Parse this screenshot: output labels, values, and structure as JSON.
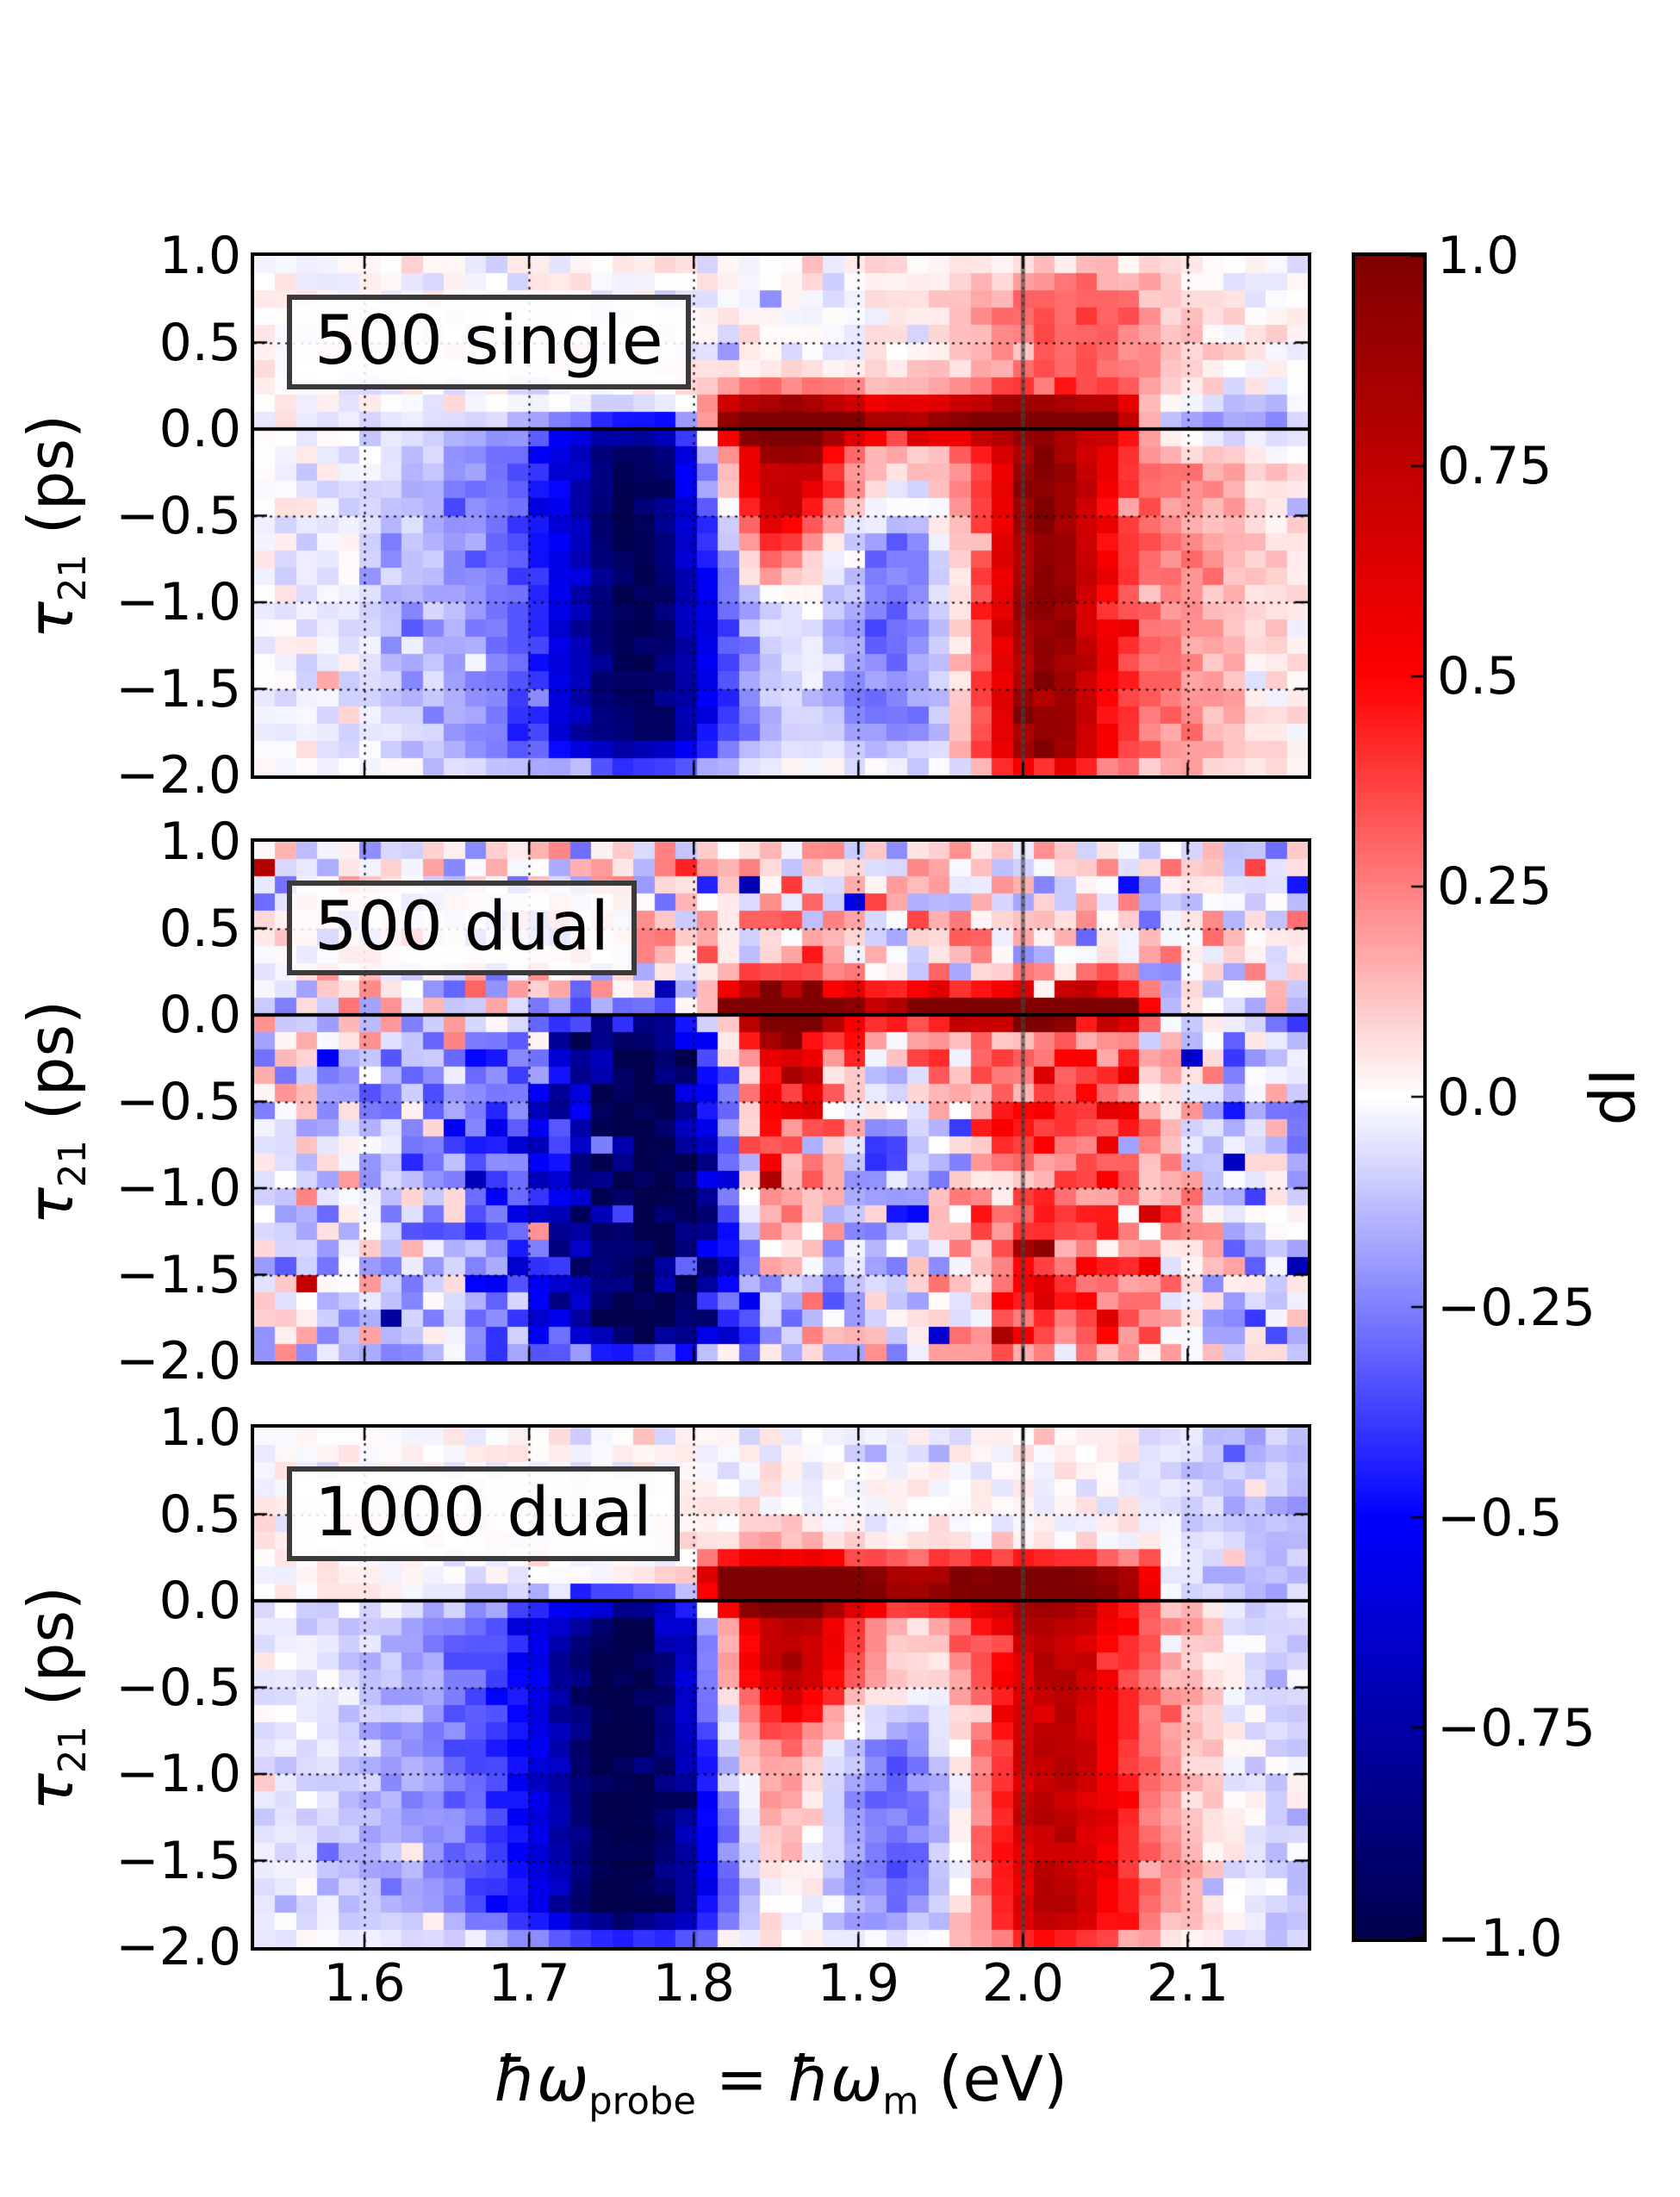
{
  "chart_data": {
    "type": "heatmap",
    "title": "",
    "xlabel_parts": {
      "homega1": "ħω",
      "sub1": "probe",
      "eq": " = ",
      "homega2": "ħω",
      "sub2": "m",
      "unit": " (eV)"
    },
    "ylabel_parts": {
      "tau": "τ",
      "sub": "21",
      "unit": " (ps)"
    },
    "axes": {
      "x": {
        "range": [
          1.533,
          2.173
        ],
        "tick_values": [
          1.6,
          1.7,
          1.8,
          1.9,
          2.0,
          2.1
        ],
        "tick_labels": [
          "1.6",
          "1.7",
          "1.8",
          "1.9",
          "2.0",
          "2.1"
        ],
        "grid": "dotted"
      },
      "y": {
        "range": [
          -2.0,
          1.0
        ],
        "tick_values": [
          1.0,
          0.5,
          0.0,
          -0.5,
          -1.0,
          -1.5,
          -2.0
        ],
        "tick_labels": [
          "1.0",
          "0.5",
          "0.0",
          "−0.5",
          "−1.0",
          "−1.5",
          "−2.0"
        ],
        "grid": "dotted"
      }
    },
    "grid": {
      "nx": 50,
      "ny": 30,
      "x0": 1.533,
      "dx": 0.0128,
      "y_top": 1.0,
      "dy": 0.1
    },
    "value_range": [
      -1,
      1
    ],
    "colormap": "seismic",
    "overlays": {
      "hline_y": 0.0,
      "vline_x": 2.0
    },
    "panels": [
      {
        "label": "500 single",
        "seed": 3,
        "noise": 0.06,
        "features": [
          {
            "a": -0.75,
            "cx": 1.768,
            "sx": 0.036,
            "y0": -2.05,
            "y1": 0.18,
            "yw": 0.25
          },
          {
            "a": -0.28,
            "cx": 1.72,
            "sx": 0.07,
            "y0": -2.05,
            "y1": 0.15,
            "yw": 0.3
          },
          {
            "a": 0.75,
            "x0": 1.803,
            "x1": 2.08,
            "xw": 0.02,
            "cy": 0.07,
            "sy": 0.1
          },
          {
            "a": 0.55,
            "cx": 1.85,
            "sx": 0.03,
            "cy": 0.0,
            "sy": 0.12
          },
          {
            "a": 0.5,
            "cx": 2.005,
            "sx": 0.035,
            "cy": 0.03,
            "sy": 0.1
          },
          {
            "a": 0.75,
            "cx": 1.852,
            "sx": 0.03,
            "cy": -0.28,
            "sy": 0.22
          },
          {
            "a": 0.35,
            "cx": 1.848,
            "sx": 0.018,
            "cy": -0.65,
            "sy": 0.25
          },
          {
            "a": 0.7,
            "cx": 2.012,
            "sx": 0.026,
            "y0": -2.05,
            "y1": -0.02,
            "yw": 0.15
          },
          {
            "a": 0.3,
            "cx": 2.05,
            "sx": 0.06,
            "y0": -2.05,
            "y1": 0.0,
            "yw": 0.2
          },
          {
            "a": 0.34,
            "cx": 2.03,
            "sx": 0.045,
            "y0": 0.05,
            "y1": 1.05,
            "yw": 0.3
          },
          {
            "a": -0.3,
            "cx": 1.925,
            "sx": 0.027,
            "y0": -2.05,
            "y1": -0.35,
            "yw": 0.35
          },
          {
            "a": -0.18,
            "x0": 2.08,
            "x1": 2.18,
            "xw": 0.03,
            "cy": 0.07,
            "sy": 0.1
          }
        ]
      },
      {
        "label": "500 dual",
        "seed": 11,
        "noise": 0.21,
        "features": [
          {
            "a": -0.8,
            "cx": 1.775,
            "sx": 0.04,
            "y0": -2.05,
            "y1": 0.12,
            "yw": 0.2
          },
          {
            "a": -0.28,
            "cx": 1.72,
            "sx": 0.08,
            "y0": -2.05,
            "y1": 0.1,
            "yw": 0.3
          },
          {
            "a": 0.85,
            "x0": 1.815,
            "x1": 2.085,
            "xw": 0.015,
            "cy": 0.05,
            "sy": 0.085
          },
          {
            "a": 0.5,
            "cx": 1.845,
            "sx": 0.028,
            "cy": 0.0,
            "sy": 0.12
          },
          {
            "a": 0.45,
            "cx": 2.0,
            "sx": 0.04,
            "cy": 0.03,
            "sy": 0.09
          },
          {
            "a": 0.65,
            "cx": 1.85,
            "sx": 0.026,
            "cy": -0.3,
            "sy": 0.3
          },
          {
            "a": 0.35,
            "cx": 1.857,
            "sx": 0.02,
            "cy": -1.0,
            "sy": 0.55
          },
          {
            "a": 0.4,
            "cx": 2.02,
            "sx": 0.05,
            "y0": -2.05,
            "y1": -0.02,
            "yw": 0.2
          },
          {
            "a": -0.28,
            "cx": 1.93,
            "sx": 0.028,
            "y0": -2.05,
            "y1": -0.3,
            "yw": 0.4
          },
          {
            "a": 0.12,
            "cx": 1.86,
            "sx": 0.08,
            "y0": 0.12,
            "y1": 1.05,
            "yw": 0.2
          },
          {
            "a": -0.12,
            "cx": 2.15,
            "sx": 0.04,
            "y0": -2.05,
            "y1": 0.2,
            "yw": 0.3
          }
        ]
      },
      {
        "label": "1000 dual",
        "seed": 21,
        "noise": 0.06,
        "features": [
          {
            "a": -0.8,
            "cx": 1.765,
            "sx": 0.042,
            "y0": -2.05,
            "y1": 0.15,
            "yw": 0.22
          },
          {
            "a": -0.3,
            "cx": 1.71,
            "sx": 0.08,
            "y0": -2.05,
            "y1": 0.1,
            "yw": 0.3
          },
          {
            "a": 0.9,
            "x0": 1.8,
            "x1": 2.09,
            "xw": 0.02,
            "cy": 0.1,
            "sy": 0.1
          },
          {
            "a": 0.5,
            "cx": 1.85,
            "sx": 0.032,
            "cy": 0.05,
            "sy": 0.12
          },
          {
            "a": 0.5,
            "cx": 2.005,
            "sx": 0.032,
            "cy": 0.05,
            "sy": 0.12
          },
          {
            "a": 0.8,
            "cx": 1.855,
            "sx": 0.034,
            "cy": -0.3,
            "sy": 0.3
          },
          {
            "a": 0.35,
            "cx": 1.845,
            "sx": 0.025,
            "cy": -1.1,
            "sy": 0.6
          },
          {
            "a": 0.55,
            "cx": 2.015,
            "sx": 0.03,
            "y0": -2.05,
            "y1": -0.02,
            "yw": 0.15
          },
          {
            "a": 0.28,
            "cx": 2.055,
            "sx": 0.055,
            "y0": -2.05,
            "y1": 0.05,
            "yw": 0.2
          },
          {
            "a": -0.32,
            "cx": 1.925,
            "sx": 0.03,
            "y0": -2.05,
            "y1": -0.4,
            "yw": 0.45
          },
          {
            "a": -0.13,
            "cx": 2.155,
            "sx": 0.045,
            "y0": -2.05,
            "y1": 1.05,
            "yw": 0.1
          }
        ]
      }
    ],
    "colorbar": {
      "label": "dI",
      "range": [
        -1.0,
        1.0
      ],
      "tick_values": [
        1.0,
        0.75,
        0.5,
        0.25,
        0.0,
        -0.25,
        -0.5,
        -0.75,
        -1.0
      ],
      "tick_labels": [
        "1.0",
        "0.75",
        "0.5",
        "0.25",
        "0.0",
        "−0.25",
        "−0.5",
        "−0.75",
        "−1.0"
      ]
    },
    "colors": {
      "cmap_neg_end": "#00004c",
      "cmap_neg": "#0000ff",
      "cmap_mid": "#ffffff",
      "cmap_pos": "#ff0000",
      "cmap_pos_end": "#7f0000",
      "hline": "#000000",
      "vline_gray": "rgba(70,70,70,0.6)"
    }
  }
}
